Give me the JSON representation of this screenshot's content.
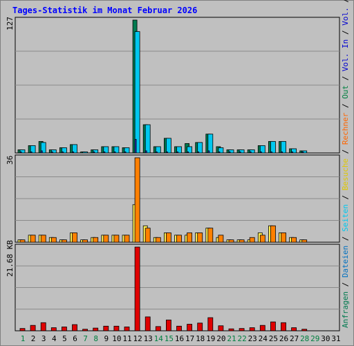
{
  "title": "Tages-Statistik im Monat Februar 2026",
  "colors": {
    "background": "#c0c0c0",
    "title": "#0000ff",
    "anfragen": "#007a4f",
    "dateien": "#00c8f0",
    "seiten": "#2e3ad6",
    "besuche": "#ffee55",
    "rechner": "#ff8000",
    "volumen": "#e00000",
    "weekday_label": "#000000",
    "weekend_label": "#008040"
  },
  "right_legend": {
    "top": [
      {
        "text": "Anfragen",
        "color": "#007a4f"
      },
      {
        "text": "/",
        "color": "#000000"
      },
      {
        "text": "Dateien",
        "color": "#0070c0"
      },
      {
        "text": "/",
        "color": "#000000"
      },
      {
        "text": "Seiten",
        "color": "#00c8f0"
      },
      {
        "text": "/",
        "color": "#000000"
      },
      {
        "text": "Besuche",
        "color": "#e0c800"
      },
      {
        "text": "/",
        "color": "#000000"
      },
      {
        "text": "Rechner",
        "color": "#ff6600"
      },
      {
        "text": "/",
        "color": "#000000"
      },
      {
        "text": "Out",
        "color": "#008040"
      },
      {
        "text": "/",
        "color": "#000000"
      },
      {
        "text": "Vol.",
        "color": "#0000d0"
      },
      {
        "text": "In",
        "color": "#0000d0"
      },
      {
        "text": "/",
        "color": "#000000"
      },
      {
        "text": "Vol.",
        "color": "#0000d0"
      },
      {
        "text": "/",
        "color": "#000000"
      },
      {
        "text": "Volumen",
        "color": "#e00000"
      }
    ]
  },
  "chart_data": [
    {
      "type": "bar",
      "panel": "anfragen-dateien-seiten",
      "ymax_label": "127",
      "ylim": [
        0,
        127
      ],
      "categories": [
        "1",
        "2",
        "3",
        "4",
        "5",
        "6",
        "7",
        "8",
        "9",
        "10",
        "11",
        "12",
        "13",
        "14",
        "15",
        "16",
        "17",
        "18",
        "19",
        "20",
        "21",
        "22",
        "23",
        "24",
        "25",
        "26",
        "27",
        "28",
        "29",
        "30",
        "31"
      ],
      "series": [
        {
          "name": "Anfragen",
          "values": [
            3,
            7,
            11,
            3,
            5,
            8,
            1,
            3,
            6,
            6,
            5,
            127,
            27,
            6,
            14,
            6,
            9,
            10,
            18,
            6,
            3,
            3,
            3,
            7,
            11,
            11,
            4,
            2,
            0,
            0,
            0
          ]
        },
        {
          "name": "Dateien",
          "values": [
            3,
            7,
            10,
            3,
            5,
            8,
            1,
            3,
            6,
            6,
            5,
            116,
            27,
            6,
            14,
            6,
            6,
            10,
            18,
            5,
            3,
            3,
            3,
            7,
            11,
            11,
            4,
            2,
            0,
            0,
            0
          ]
        },
        {
          "name": "Seiten",
          "values": [
            1,
            1,
            2,
            1,
            1,
            1,
            0,
            1,
            1,
            1,
            1,
            13,
            2,
            1,
            1,
            1,
            1,
            1,
            2,
            1,
            1,
            1,
            1,
            1,
            1,
            1,
            1,
            1,
            0,
            0,
            0
          ]
        }
      ]
    },
    {
      "type": "bar",
      "panel": "besuche-rechner",
      "ymax_label": "36",
      "ylim": [
        0,
        36
      ],
      "categories": [
        "1",
        "2",
        "3",
        "4",
        "5",
        "6",
        "7",
        "8",
        "9",
        "10",
        "11",
        "12",
        "13",
        "14",
        "15",
        "16",
        "17",
        "18",
        "19",
        "20",
        "21",
        "22",
        "23",
        "24",
        "25",
        "26",
        "27",
        "28",
        "29",
        "30",
        "31"
      ],
      "series": [
        {
          "name": "Besuche",
          "values": [
            1,
            3,
            3,
            2,
            1,
            4,
            1,
            2,
            3,
            3,
            3,
            16,
            7,
            2,
            4,
            3,
            3,
            4,
            6,
            2,
            1,
            1,
            1,
            4,
            7,
            4,
            2,
            1,
            0,
            0,
            0
          ]
        },
        {
          "name": "Rechner",
          "values": [
            1,
            3,
            3,
            2,
            1,
            4,
            1,
            2,
            3,
            3,
            3,
            36,
            6,
            2,
            4,
            3,
            4,
            4,
            6,
            3,
            1,
            1,
            2,
            3,
            7,
            4,
            2,
            1,
            0,
            0,
            0
          ]
        }
      ]
    },
    {
      "type": "bar",
      "panel": "volumen",
      "ymax_label": "21.68 KB",
      "ylim": [
        0,
        21.68
      ],
      "categories": [
        "1",
        "2",
        "3",
        "4",
        "5",
        "6",
        "7",
        "8",
        "9",
        "10",
        "11",
        "12",
        "13",
        "14",
        "15",
        "16",
        "17",
        "18",
        "19",
        "20",
        "21",
        "22",
        "23",
        "24",
        "25",
        "26",
        "27",
        "28",
        "29",
        "30",
        "31"
      ],
      "series": [
        {
          "name": "Volumen",
          "values": [
            0.6,
            1.4,
            2.1,
            0.8,
            1.0,
            1.6,
            0.4,
            0.7,
            1.2,
            1.2,
            1.0,
            21.68,
            3.6,
            1.1,
            2.8,
            1.2,
            1.7,
            2.0,
            3.4,
            1.3,
            0.5,
            0.6,
            0.8,
            1.4,
            2.3,
            2.1,
            0.8,
            0.4,
            0,
            0,
            0
          ]
        }
      ]
    }
  ],
  "weekend_days": [
    1,
    7,
    8,
    14,
    15,
    21,
    22,
    28,
    29
  ]
}
